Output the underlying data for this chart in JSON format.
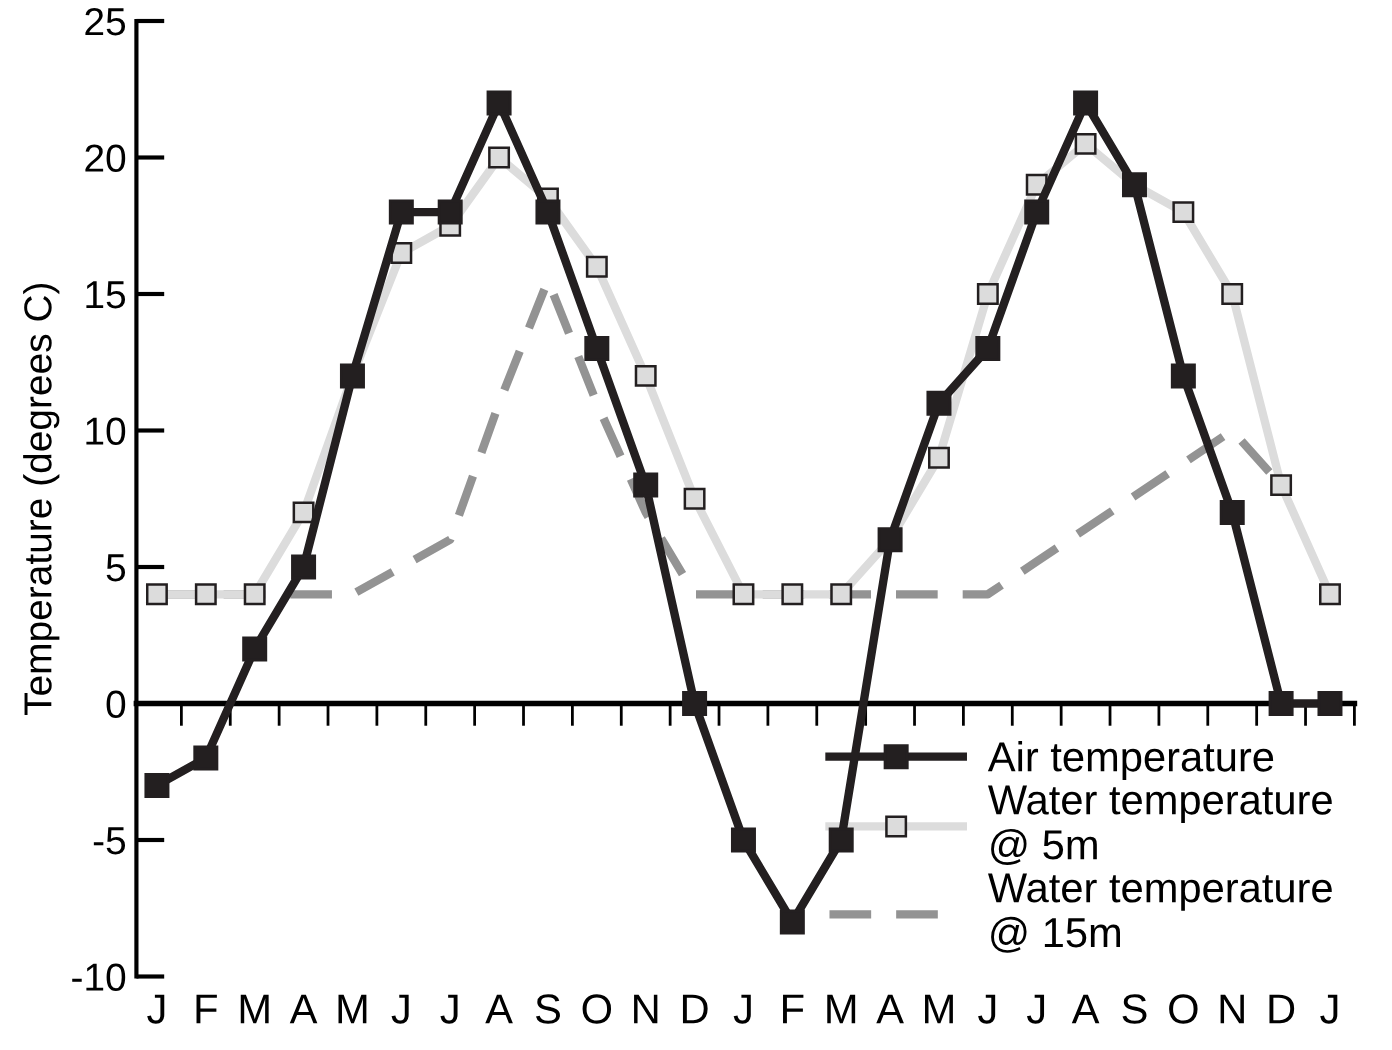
{
  "chart_data": {
    "type": "line",
    "ylabel": "Temperature (degrees C)",
    "categories": [
      "J",
      "F",
      "M",
      "A",
      "M",
      "J",
      "J",
      "A",
      "S",
      "O",
      "N",
      "D",
      "J",
      "F",
      "M",
      "A",
      "M",
      "J",
      "J",
      "A",
      "S",
      "O",
      "N",
      "D",
      "J"
    ],
    "series": [
      {
        "name": "Air temperature",
        "color": "#231f20",
        "marker": "square",
        "line_style": "solid",
        "values": [
          -3,
          -2,
          2,
          5,
          12,
          18,
          18,
          22,
          18,
          13,
          8,
          0,
          -5,
          -8,
          -5,
          6,
          11,
          13,
          18,
          22,
          19,
          12,
          7,
          0,
          0
        ]
      },
      {
        "name": "Water temperature\n@ 5m",
        "color": "#dcdcdc",
        "marker": "square",
        "line_style": "solid",
        "values": [
          4,
          4,
          4,
          7,
          12,
          16.5,
          17.5,
          20,
          18.5,
          16,
          12,
          7.5,
          4,
          4,
          4,
          6,
          9,
          15,
          19,
          20.5,
          19,
          18,
          15,
          8,
          4
        ]
      },
      {
        "name": "Water temperature\n@ 15m",
        "color": "#939393",
        "marker": "none",
        "line_style": "dashed",
        "values": [
          4,
          4,
          4,
          4,
          4,
          5,
          6,
          11,
          15.5,
          11,
          7,
          4,
          4,
          4,
          4,
          4,
          4,
          4,
          5.2,
          6.4,
          7.6,
          8.8,
          10,
          8,
          null
        ]
      }
    ],
    "ylim": [
      -10,
      25
    ],
    "yticks": [
      -10,
      -5,
      0,
      5,
      10,
      15,
      20,
      25
    ],
    "legend": "bottom right"
  }
}
